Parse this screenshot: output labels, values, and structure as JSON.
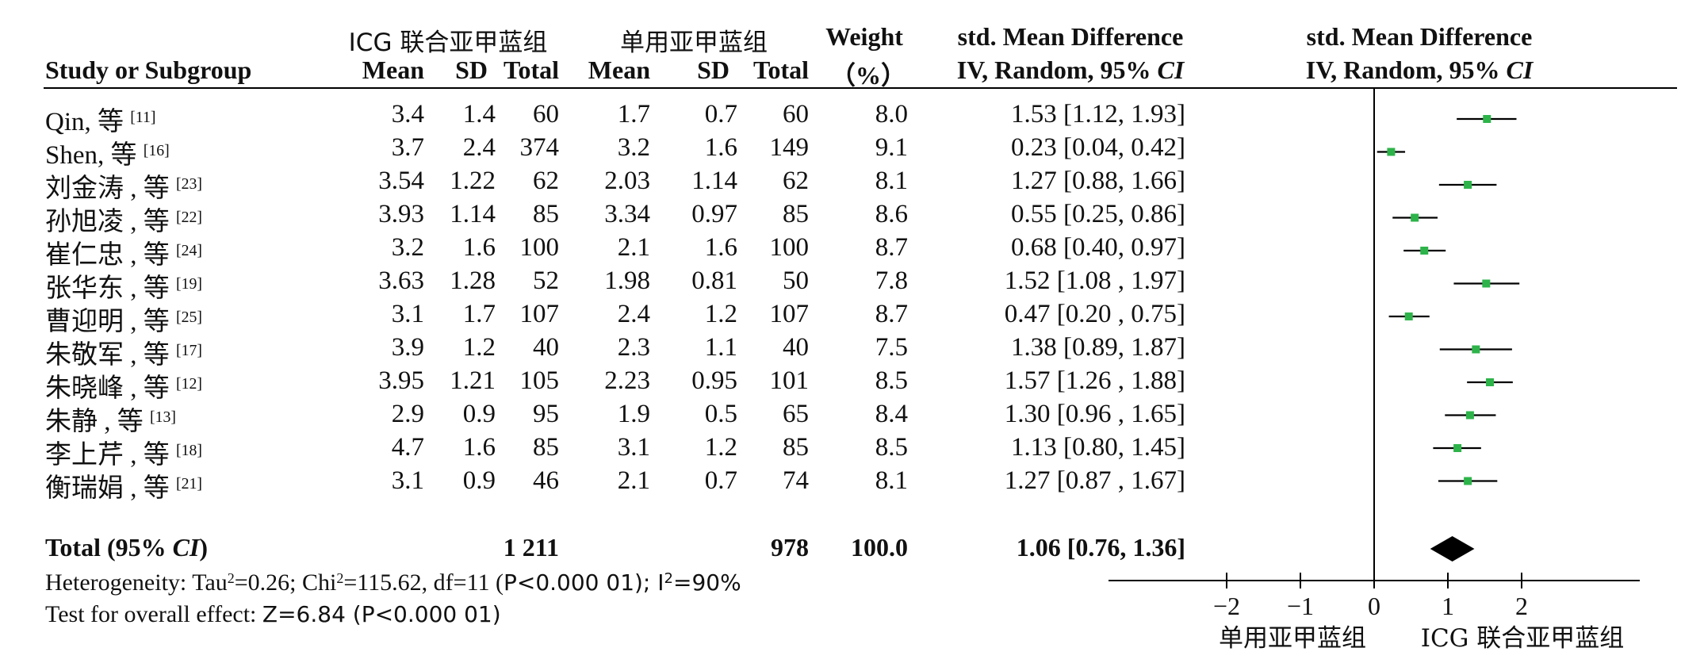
{
  "headers": {
    "study": "Study or Subgroup",
    "group1": "ICG 联合亚甲蓝组",
    "group2": "单用亚甲蓝组",
    "mean": "Mean",
    "sd": "SD",
    "total": "Total",
    "weight_line1": "Weight",
    "weight_line2": "（%）",
    "effect_line1": "std. Mean Difference",
    "effect_line2_prefix": "IV, Random, 95% ",
    "ci": "CI"
  },
  "studies": [
    {
      "name": "Qin, 等 ",
      "ref": "[11]",
      "m1": "3.4",
      "sd1": "1.4",
      "n1": "60",
      "m2": "1.7",
      "sd2": "0.7",
      "n2": "60",
      "weight": "8.0",
      "ci_text": "1.53 [1.12, 1.93]"
    },
    {
      "name": "Shen, 等 ",
      "ref": "[16]",
      "m1": "3.7",
      "sd1": "2.4",
      "n1": "374",
      "m2": "3.2",
      "sd2": "1.6",
      "n2": "149",
      "weight": "9.1",
      "ci_text": "0.23 [0.04, 0.42]"
    },
    {
      "name": "刘金涛 , 等 ",
      "ref": "[23]",
      "m1": "3.54",
      "sd1": "1.22",
      "n1": "62",
      "m2": "2.03",
      "sd2": "1.14",
      "n2": "62",
      "weight": "8.1",
      "ci_text": "1.27 [0.88, 1.66]"
    },
    {
      "name": "孙旭凌 , 等 ",
      "ref": "[22]",
      "m1": "3.93",
      "sd1": "1.14",
      "n1": "85",
      "m2": "3.34",
      "sd2": "0.97",
      "n2": "85",
      "weight": "8.6",
      "ci_text": "0.55 [0.25, 0.86]"
    },
    {
      "name": "崔仁忠 , 等 ",
      "ref": "[24]",
      "m1": "3.2",
      "sd1": "1.6",
      "n1": "100",
      "m2": "2.1",
      "sd2": "1.6",
      "n2": "100",
      "weight": "8.7",
      "ci_text": "0.68 [0.40, 0.97]"
    },
    {
      "name": "张华东 , 等 ",
      "ref": "[19]",
      "m1": "3.63",
      "sd1": "1.28",
      "n1": "52",
      "m2": "1.98",
      "sd2": "0.81",
      "n2": "50",
      "weight": "7.8",
      "ci_text": "1.52 [1.08 , 1.97]"
    },
    {
      "name": "曹迎明 , 等 ",
      "ref": "[25]",
      "m1": "3.1",
      "sd1": "1.7",
      "n1": "107",
      "m2": "2.4",
      "sd2": "1.2",
      "n2": "107",
      "weight": "8.7",
      "ci_text": "0.47 [0.20 , 0.75]"
    },
    {
      "name": "朱敬军 , 等 ",
      "ref": "[17]",
      "m1": "3.9",
      "sd1": "1.2",
      "n1": "40",
      "m2": "2.3",
      "sd2": "1.1",
      "n2": "40",
      "weight": "7.5",
      "ci_text": "1.38 [0.89, 1.87]"
    },
    {
      "name": "朱晓峰 , 等 ",
      "ref": "[12]",
      "m1": "3.95",
      "sd1": "1.21",
      "n1": "105",
      "m2": "2.23",
      "sd2": "0.95",
      "n2": "101",
      "weight": "8.5",
      "ci_text": "1.57 [1.26 , 1.88]"
    },
    {
      "name": "朱静 , 等 ",
      "ref": "[13]",
      "m1": "2.9",
      "sd1": "0.9",
      "n1": "95",
      "m2": "1.9",
      "sd2": "0.5",
      "n2": "65",
      "weight": "8.4",
      "ci_text": "1.30 [0.96 , 1.65]"
    },
    {
      "name": "李上芹 , 等 ",
      "ref": "[18]",
      "m1": "4.7",
      "sd1": "1.6",
      "n1": "85",
      "m2": "3.1",
      "sd2": "1.2",
      "n2": "85",
      "weight": "8.5",
      "ci_text": "1.13 [0.80, 1.45]"
    },
    {
      "name": "衡瑞娟 , 等 ",
      "ref": "[21]",
      "m1": "3.1",
      "sd1": "0.9",
      "n1": "46",
      "m2": "2.1",
      "sd2": "0.7",
      "n2": "74",
      "weight": "8.1",
      "ci_text": "1.27 [0.87 , 1.67]"
    }
  ],
  "total": {
    "label_prefix": "Total (95% ",
    "label_ci": "CI",
    "label_suffix": ")",
    "n1": "1 211",
    "n2": "978",
    "weight": "100.0",
    "ci_text": "1.06 [0.76, 1.36]"
  },
  "heterogeneity": {
    "p1": "Heterogeneity: Tau",
    "s1": "2",
    "p2": "=0.26; Chi",
    "s2": "2",
    "p3": "=115.62, df=11 (",
    "p4": "P<0.000 01); I",
    "s3": "2",
    "p5": "=90%"
  },
  "overall": {
    "p1": "Test for overall effect: ",
    "p2": "Z=6.84 (P<0.000 01)"
  },
  "axis_labels": {
    "left": "单用亚甲蓝组",
    "right": "ICG 联合亚甲蓝组"
  },
  "chart_data": {
    "type": "forest",
    "xlim": [
      -2,
      2
    ],
    "ticks": [
      -2,
      -1,
      0,
      1,
      2
    ],
    "tick_labels": [
      "−2",
      "−1",
      "0",
      "1",
      "2"
    ],
    "null_line": 0,
    "colors": {
      "marker": "#2db34a",
      "line": "#000000",
      "diamond": "#000000"
    },
    "studies": [
      {
        "est": 1.53,
        "lo": 1.12,
        "hi": 1.93
      },
      {
        "est": 0.23,
        "lo": 0.04,
        "hi": 0.42
      },
      {
        "est": 1.27,
        "lo": 0.88,
        "hi": 1.66
      },
      {
        "est": 0.55,
        "lo": 0.25,
        "hi": 0.86
      },
      {
        "est": 0.68,
        "lo": 0.4,
        "hi": 0.97
      },
      {
        "est": 1.52,
        "lo": 1.08,
        "hi": 1.97
      },
      {
        "est": 0.47,
        "lo": 0.2,
        "hi": 0.75
      },
      {
        "est": 1.38,
        "lo": 0.89,
        "hi": 1.87
      },
      {
        "est": 1.57,
        "lo": 1.26,
        "hi": 1.88
      },
      {
        "est": 1.3,
        "lo": 0.96,
        "hi": 1.65
      },
      {
        "est": 1.13,
        "lo": 0.8,
        "hi": 1.45
      },
      {
        "est": 1.27,
        "lo": 0.87,
        "hi": 1.67
      }
    ],
    "pooled": {
      "est": 1.06,
      "lo": 0.76,
      "hi": 1.36
    }
  }
}
